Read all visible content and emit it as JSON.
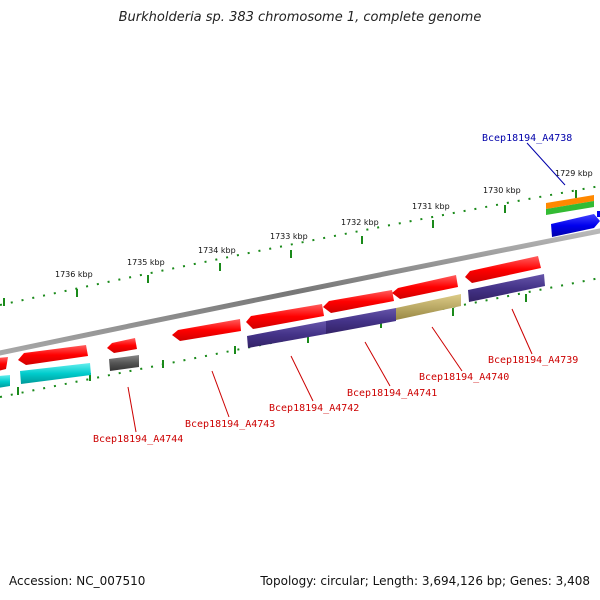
{
  "title": "Burkholderia sp. 383 chromosome 1, complete genome",
  "footer": {
    "accession": "Accession: NC_007510",
    "summary": "Topology: circular; Length: 3,694,126 bp; Genes: 3,408"
  },
  "colors": {
    "backbone": "#888888",
    "tick": "#1a8a1a",
    "label_red": "#cc0000",
    "label_blue": "#0000aa",
    "gene_red": "#ff0000",
    "gene_cyan": "#00cccc",
    "gene_navy": "#443388",
    "gene_olive": "#bbaa66",
    "gene_gray": "#555555",
    "gene_blue": "#0000ee",
    "gene_orange": "#ff8800",
    "gene_green": "#33bb33"
  },
  "scale_labels": [
    "1729 kbp",
    "1730 kbp",
    "1731 kbp",
    "1732 kbp",
    "1733 kbp",
    "1734 kbp",
    "1735 kbp",
    "1736 kbp"
  ],
  "gene_labels": [
    {
      "id": "Bcep18194_A4738",
      "color": "blue"
    },
    {
      "id": "Bcep18194_A4739",
      "color": "red"
    },
    {
      "id": "Bcep18194_A4740",
      "color": "red"
    },
    {
      "id": "Bcep18194_A4741",
      "color": "red"
    },
    {
      "id": "Bcep18194_A4742",
      "color": "red"
    },
    {
      "id": "Bcep18194_A4743",
      "color": "red"
    },
    {
      "id": "Bcep18194_A4744",
      "color": "red"
    }
  ]
}
